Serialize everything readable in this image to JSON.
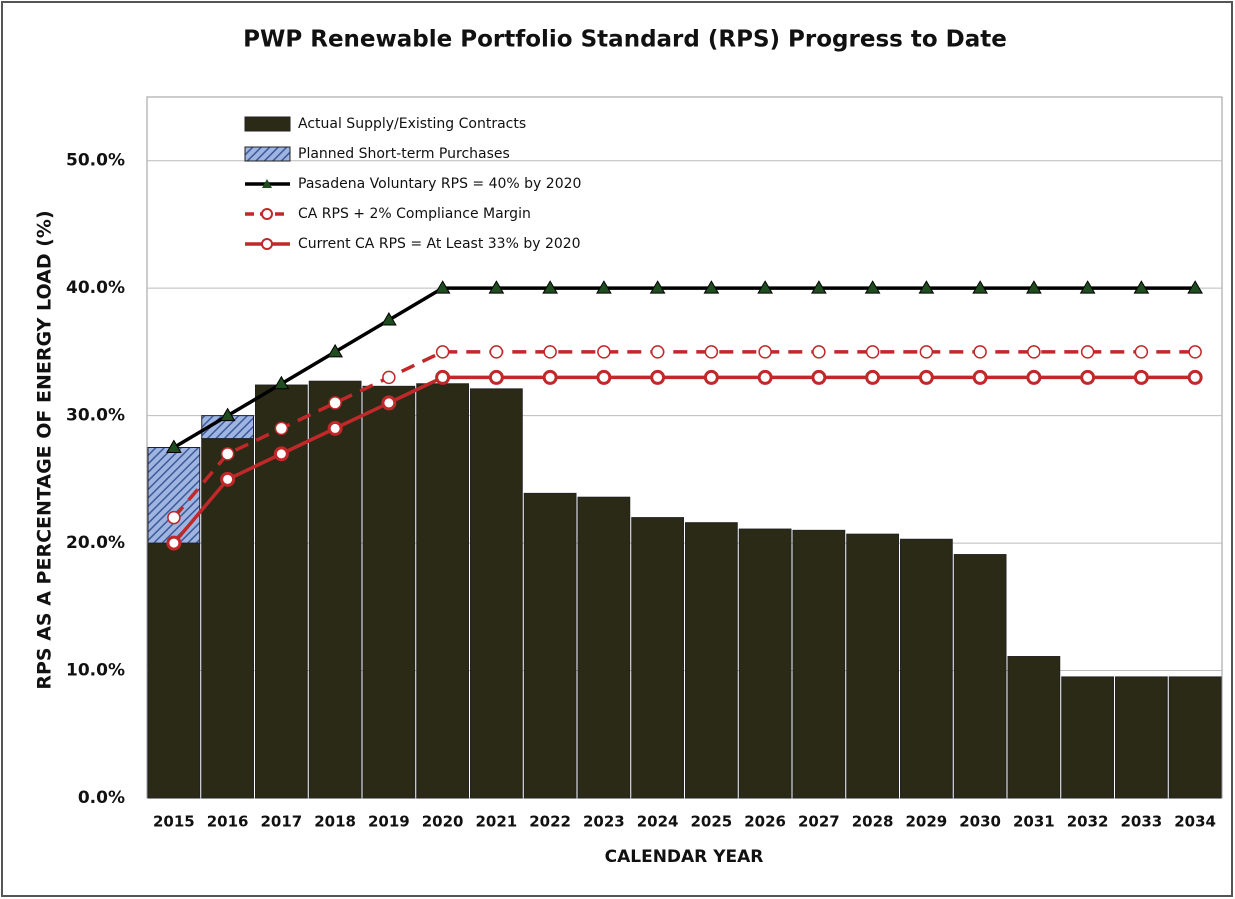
{
  "chart_data": {
    "type": "bar",
    "title": "PWP Renewable Portfolio Standard (RPS) Progress to Date",
    "x_label": "CALENDAR YEAR",
    "y_label": "RPS AS A PERCENTAGE OF ENERGY LOAD (%)",
    "categories": [
      "2015",
      "2016",
      "2017",
      "2018",
      "2019",
      "2020",
      "2021",
      "2022",
      "2023",
      "2024",
      "2025",
      "2026",
      "2027",
      "2028",
      "2029",
      "2030",
      "2031",
      "2032",
      "2033",
      "2034"
    ],
    "ylim": [
      0,
      55
    ],
    "yticks": [
      {
        "value": 0,
        "label": "0.0%"
      },
      {
        "value": 10,
        "label": "10.0%"
      },
      {
        "value": 20,
        "label": "20.0%"
      },
      {
        "value": 30,
        "label": "30.0%"
      },
      {
        "value": 40,
        "label": "40.0%"
      },
      {
        "value": 50,
        "label": "50.0%"
      }
    ],
    "grid": true,
    "legend": "top-left",
    "series": [
      {
        "name": "Actual Supply/Existing Contracts",
        "type": "bar",
        "color": "#2b2a16",
        "values": [
          20,
          28.2,
          32.4,
          32.7,
          32.3,
          32.5,
          32.1,
          23.9,
          23.6,
          22.0,
          21.6,
          21.1,
          21.0,
          20.7,
          20.3,
          19.1,
          11.1,
          9.5,
          9.5,
          9.5
        ]
      },
      {
        "name": "Planned Short-term Purchases",
        "type": "bar",
        "color": "#9fb4e0",
        "hatch": true,
        "values": [
          7.5,
          1.8,
          0,
          0,
          0,
          0,
          0,
          0,
          0,
          0,
          0,
          0,
          0,
          0,
          0,
          0,
          0,
          0,
          0,
          0
        ]
      },
      {
        "name": "Pasadena Voluntary RPS  = 40% by 2020",
        "type": "line",
        "color": "#000000",
        "marker": "triangle",
        "marker_color": "#1f4d1f",
        "values": [
          27.5,
          30,
          32.5,
          35,
          37.5,
          40,
          40,
          40,
          40,
          40,
          40,
          40,
          40,
          40,
          40,
          40,
          40,
          40,
          40,
          40
        ]
      },
      {
        "name": "CA RPS + 2% Compliance Margin",
        "type": "line",
        "color": "#c0282a",
        "marker": "circle",
        "dashed": true,
        "values": [
          22,
          27,
          29,
          31,
          33,
          35,
          35,
          35,
          35,
          35,
          35,
          35,
          35,
          35,
          35,
          35,
          35,
          35,
          35,
          35
        ]
      },
      {
        "name": "Current CA RPS = At Least 33% by 2020",
        "type": "line",
        "color": "#c0282a",
        "marker": "circle",
        "values": [
          20,
          25,
          27,
          29,
          31,
          33,
          33,
          33,
          33,
          33,
          33,
          33,
          33,
          33,
          33,
          33,
          33,
          33,
          33,
          33
        ]
      }
    ]
  }
}
